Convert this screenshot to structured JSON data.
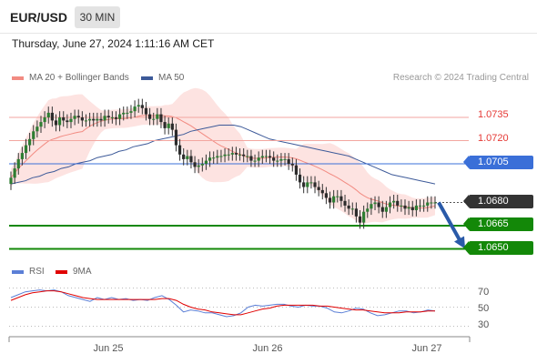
{
  "header": {
    "symbol": "EUR/USD",
    "timeframe": "30 MIN",
    "datetime": "Thursday, June 27, 2024 1:11:16 AM CET",
    "credit": "Research © 2024 Trading Central"
  },
  "legend": {
    "ma20_label": "MA 20 + Bollinger Bands",
    "ma20_color": "#f28b82",
    "ma50_label": "MA 50",
    "ma50_color": "#3d5a99"
  },
  "price_levels": {
    "r2": "1.0735",
    "r1": "1.0720",
    "pivot": "1.0705",
    "current": "1.0680",
    "s1": "1.0665",
    "s2": "1.0650",
    "resistance_color": "#e53935",
    "pivot_color": "#3a6fd8",
    "support_color": "#138808",
    "current_color": "#333333"
  },
  "rsi": {
    "label": "RSI",
    "ma_label": "9MA",
    "rsi_color": "#5b7fd6",
    "ma_color": "#e00000",
    "levels": [
      "70",
      "50",
      "30"
    ]
  },
  "xaxis": {
    "labels": [
      "Jun 25",
      "Jun 26",
      "Jun 27"
    ]
  },
  "chart_data": {
    "type": "candlestick",
    "symbol": "EUR/USD",
    "interval": "30 MIN",
    "ylim": [
      1.0645,
      1.0755
    ],
    "closes": [
      1.0696,
      1.0702,
      1.0708,
      1.0712,
      1.0717,
      1.0721,
      1.0726,
      1.0729,
      1.0732,
      1.0735,
      1.0738,
      1.0733,
      1.073,
      1.0735,
      1.0733,
      1.0732,
      1.0734,
      1.0736,
      1.0735,
      1.0733,
      1.0733,
      1.0734,
      1.0733,
      1.0734,
      1.0733,
      1.0736,
      1.0735,
      1.0735,
      1.0734,
      1.0737,
      1.0738,
      1.0738,
      1.0739,
      1.0742,
      1.0743,
      1.0741,
      1.0737,
      1.0734,
      1.0734,
      1.0737,
      1.0732,
      1.0728,
      1.0731,
      1.0727,
      1.0717,
      1.0711,
      1.0708,
      1.071,
      1.0706,
      1.0703,
      1.0704,
      1.0705,
      1.0707,
      1.0709,
      1.0709,
      1.071,
      1.071,
      1.0711,
      1.0711,
      1.0712,
      1.0711,
      1.0711,
      1.071,
      1.071,
      1.0707,
      1.0707,
      1.0709,
      1.071,
      1.071,
      1.0709,
      1.0707,
      1.0707,
      1.0708,
      1.0708,
      1.0705,
      1.0704,
      1.0698,
      1.0693,
      1.069,
      1.0693,
      1.0693,
      1.069,
      1.0688,
      1.0686,
      1.0683,
      1.068,
      1.0684,
      1.0684,
      1.0681,
      1.0678,
      1.0676,
      1.0676,
      1.0671,
      1.0667,
      1.0674,
      1.0676,
      1.0679,
      1.068,
      1.0677,
      1.0674,
      1.0677,
      1.068,
      1.0681,
      1.0678,
      1.0678,
      1.0676,
      1.0677,
      1.0675,
      1.0678,
      1.0678,
      1.0678,
      1.068,
      1.068,
      1.068
    ],
    "ma20_offset": 0.0001,
    "bb_upper_note": "",
    "series": [
      {
        "name": "MA 20 + Bollinger Bands",
        "color": "#f28b82"
      },
      {
        "name": "MA 50",
        "color": "#3d5a99"
      }
    ],
    "ma50": [
      1.0692,
      1.0693,
      1.0694,
      1.0696,
      1.0697,
      1.0699,
      1.07,
      1.0702,
      1.0703,
      1.0705,
      1.0706,
      1.0707,
      1.0709,
      1.071,
      1.0711,
      1.0713,
      1.0714,
      1.0716,
      1.0717,
      1.0718,
      1.072,
      1.0721,
      1.0722,
      1.0723,
      1.0724,
      1.0726,
      1.0727,
      1.0728,
      1.0729,
      1.073,
      1.073,
      1.073,
      1.0729,
      1.0727,
      1.0725,
      1.0723,
      1.0721,
      1.072,
      1.0719,
      1.0718,
      1.0717,
      1.0716,
      1.0715,
      1.0714,
      1.0713,
      1.0712,
      1.0711,
      1.071,
      1.0708,
      1.0706,
      1.0704,
      1.0702,
      1.07,
      1.0698,
      1.0697,
      1.0696,
      1.0695,
      1.0694,
      1.0693,
      1.0692
    ],
    "rsi_values": [
      60,
      63,
      66,
      67,
      68,
      67,
      68,
      66,
      62,
      60,
      58,
      56,
      60,
      58,
      60,
      58,
      59,
      57,
      58,
      57,
      60,
      62,
      58,
      52,
      45,
      47,
      46,
      44,
      44,
      42,
      40,
      41,
      44,
      50,
      52,
      51,
      52,
      53,
      53,
      51,
      50,
      52,
      51,
      51,
      49,
      45,
      44,
      46,
      49,
      48,
      44,
      41,
      42,
      44,
      46,
      46,
      44,
      45,
      47,
      46
    ],
    "rsi_ma_values": [
      57,
      60,
      63,
      65,
      66,
      67,
      67,
      66,
      64,
      62,
      60,
      59,
      58,
      58,
      58,
      58,
      58,
      58,
      58,
      58,
      58,
      59,
      59,
      57,
      53,
      50,
      48,
      47,
      45,
      44,
      43,
      42,
      42,
      44,
      46,
      48,
      49,
      51,
      52,
      52,
      52,
      52,
      52,
      51,
      51,
      50,
      49,
      48,
      47,
      47,
      46,
      45,
      44,
      44,
      44,
      45,
      45,
      45,
      46,
      46
    ],
    "rsi_ylim": [
      20,
      80
    ],
    "levels": [
      {
        "label": "1.0735",
        "value": 1.0735,
        "kind": "resistance"
      },
      {
        "label": "1.0720",
        "value": 1.072,
        "kind": "resistance"
      },
      {
        "label": "1.0705",
        "value": 1.0705,
        "kind": "pivot"
      },
      {
        "label": "1.0665",
        "value": 1.0665,
        "kind": "support"
      },
      {
        "label": "1.0650",
        "value": 1.065,
        "kind": "support"
      }
    ],
    "last_price": 1.068,
    "forecast_arrow": {
      "from": 1.068,
      "to": 1.065
    }
  }
}
